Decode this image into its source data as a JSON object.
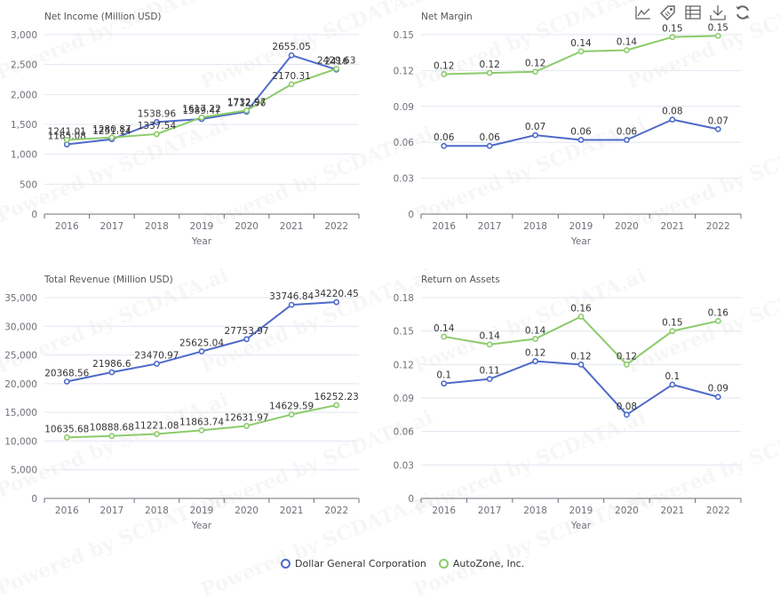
{
  "legend": [
    {
      "name": "Dollar General Corporation",
      "color": "#4e6ac9"
    },
    {
      "name": "AutoZone, Inc.",
      "color": "#8bcb6a"
    }
  ],
  "toolbar": [
    {
      "name": "line-chart-icon"
    },
    {
      "name": "tag-icon"
    },
    {
      "name": "data-table-icon"
    },
    {
      "name": "download-icon"
    },
    {
      "name": "refresh-icon"
    }
  ],
  "watermark": "Powered by SCDATA.ai",
  "chart_data": [
    {
      "type": "line",
      "title": "Net Income (Million USD)",
      "xlabel": "Year",
      "ylabel": "",
      "categories": [
        "2016",
        "2017",
        "2018",
        "2019",
        "2020",
        "2021",
        "2022"
      ],
      "ylim": [
        0,
        3000
      ],
      "yticks": [
        0,
        500,
        1000,
        1500,
        2000,
        2500,
        3000
      ],
      "ytick_labels": [
        "0",
        "500",
        "1,000",
        "1,500",
        "2,000",
        "2,500",
        "3,000"
      ],
      "series": [
        {
          "name": "Dollar General Corporation",
          "values": [
            1165.08,
            1251.14,
            1538.96,
            1589.47,
            1712.56,
            2655.05,
            2416.0
          ],
          "labels": [
            "1165.08",
            "1251.14",
            "1538.96",
            "1589.47",
            "1712.56",
            "2655.05",
            "2416"
          ]
        },
        {
          "name": "AutoZone, Inc.",
          "values": [
            1241.01,
            1280.87,
            1337.54,
            1617.22,
            1732.97,
            2170.31,
            2429.63
          ],
          "labels": [
            "1241.01",
            "1280.87",
            "1337.54",
            "1617.22",
            "1732.97",
            "2170.31",
            "2429.63"
          ]
        }
      ]
    },
    {
      "type": "line",
      "title": "Net Margin",
      "xlabel": "Year",
      "ylabel": "",
      "categories": [
        "2016",
        "2017",
        "2018",
        "2019",
        "2020",
        "2021",
        "2022"
      ],
      "ylim": [
        0,
        0.15
      ],
      "yticks": [
        0,
        0.03,
        0.06,
        0.09,
        0.12,
        0.15
      ],
      "ytick_labels": [
        "0",
        "0.03",
        "0.06",
        "0.09",
        "0.12",
        "0.15"
      ],
      "series": [
        {
          "name": "Dollar General Corporation",
          "values": [
            0.057,
            0.057,
            0.066,
            0.062,
            0.062,
            0.079,
            0.071
          ],
          "labels": [
            "0.06",
            "0.06",
            "0.07",
            "0.06",
            "0.06",
            "0.08",
            "0.07"
          ]
        },
        {
          "name": "AutoZone, Inc.",
          "values": [
            0.117,
            0.118,
            0.119,
            0.136,
            0.137,
            0.148,
            0.149
          ],
          "labels": [
            "0.12",
            "0.12",
            "0.12",
            "0.14",
            "0.14",
            "0.15",
            "0.15"
          ]
        }
      ]
    },
    {
      "type": "line",
      "title": "Total Revenue (Million USD)",
      "xlabel": "Year",
      "ylabel": "",
      "categories": [
        "2016",
        "2017",
        "2018",
        "2019",
        "2020",
        "2021",
        "2022"
      ],
      "ylim": [
        0,
        35000
      ],
      "yticks": [
        0,
        5000,
        10000,
        15000,
        20000,
        25000,
        30000,
        35000
      ],
      "ytick_labels": [
        "0",
        "5,000",
        "10,000",
        "15,000",
        "20,000",
        "25,000",
        "30,000",
        "35,000"
      ],
      "series": [
        {
          "name": "Dollar General Corporation",
          "values": [
            20368.56,
            21986.6,
            23470.97,
            25625.04,
            27753.97,
            33746.84,
            34220.45
          ],
          "labels": [
            "20368.56",
            "21986.6",
            "23470.97",
            "25625.04",
            "27753.97",
            "33746.84",
            "34220.45"
          ]
        },
        {
          "name": "AutoZone, Inc.",
          "values": [
            10635.68,
            10888.68,
            11221.08,
            11863.74,
            12631.97,
            14629.59,
            16252.23
          ],
          "labels": [
            "10635.68",
            "10888.68",
            "11221.08",
            "11863.74",
            "12631.97",
            "14629.59",
            "16252.23"
          ]
        }
      ]
    },
    {
      "type": "line",
      "title": "Return on Assets",
      "xlabel": "Year",
      "ylabel": "",
      "categories": [
        "2016",
        "2017",
        "2018",
        "2019",
        "2020",
        "2021",
        "2022"
      ],
      "ylim": [
        0,
        0.18
      ],
      "yticks": [
        0,
        0.03,
        0.06,
        0.09,
        0.12,
        0.15,
        0.18
      ],
      "ytick_labels": [
        "0",
        "0.03",
        "0.06",
        "0.09",
        "0.12",
        "0.15",
        "0.18"
      ],
      "series": [
        {
          "name": "Dollar General Corporation",
          "values": [
            0.103,
            0.107,
            0.123,
            0.12,
            0.075,
            0.102,
            0.091
          ],
          "labels": [
            "0.1",
            "0.11",
            "0.12",
            "0.12",
            "0.08",
            "0.1",
            "0.09"
          ]
        },
        {
          "name": "AutoZone, Inc.",
          "values": [
            0.145,
            0.138,
            0.143,
            0.163,
            0.12,
            0.15,
            0.159
          ],
          "labels": [
            "0.14",
            "0.14",
            "0.14",
            "0.16",
            "0.12",
            "0.15",
            "0.16"
          ]
        }
      ]
    }
  ]
}
